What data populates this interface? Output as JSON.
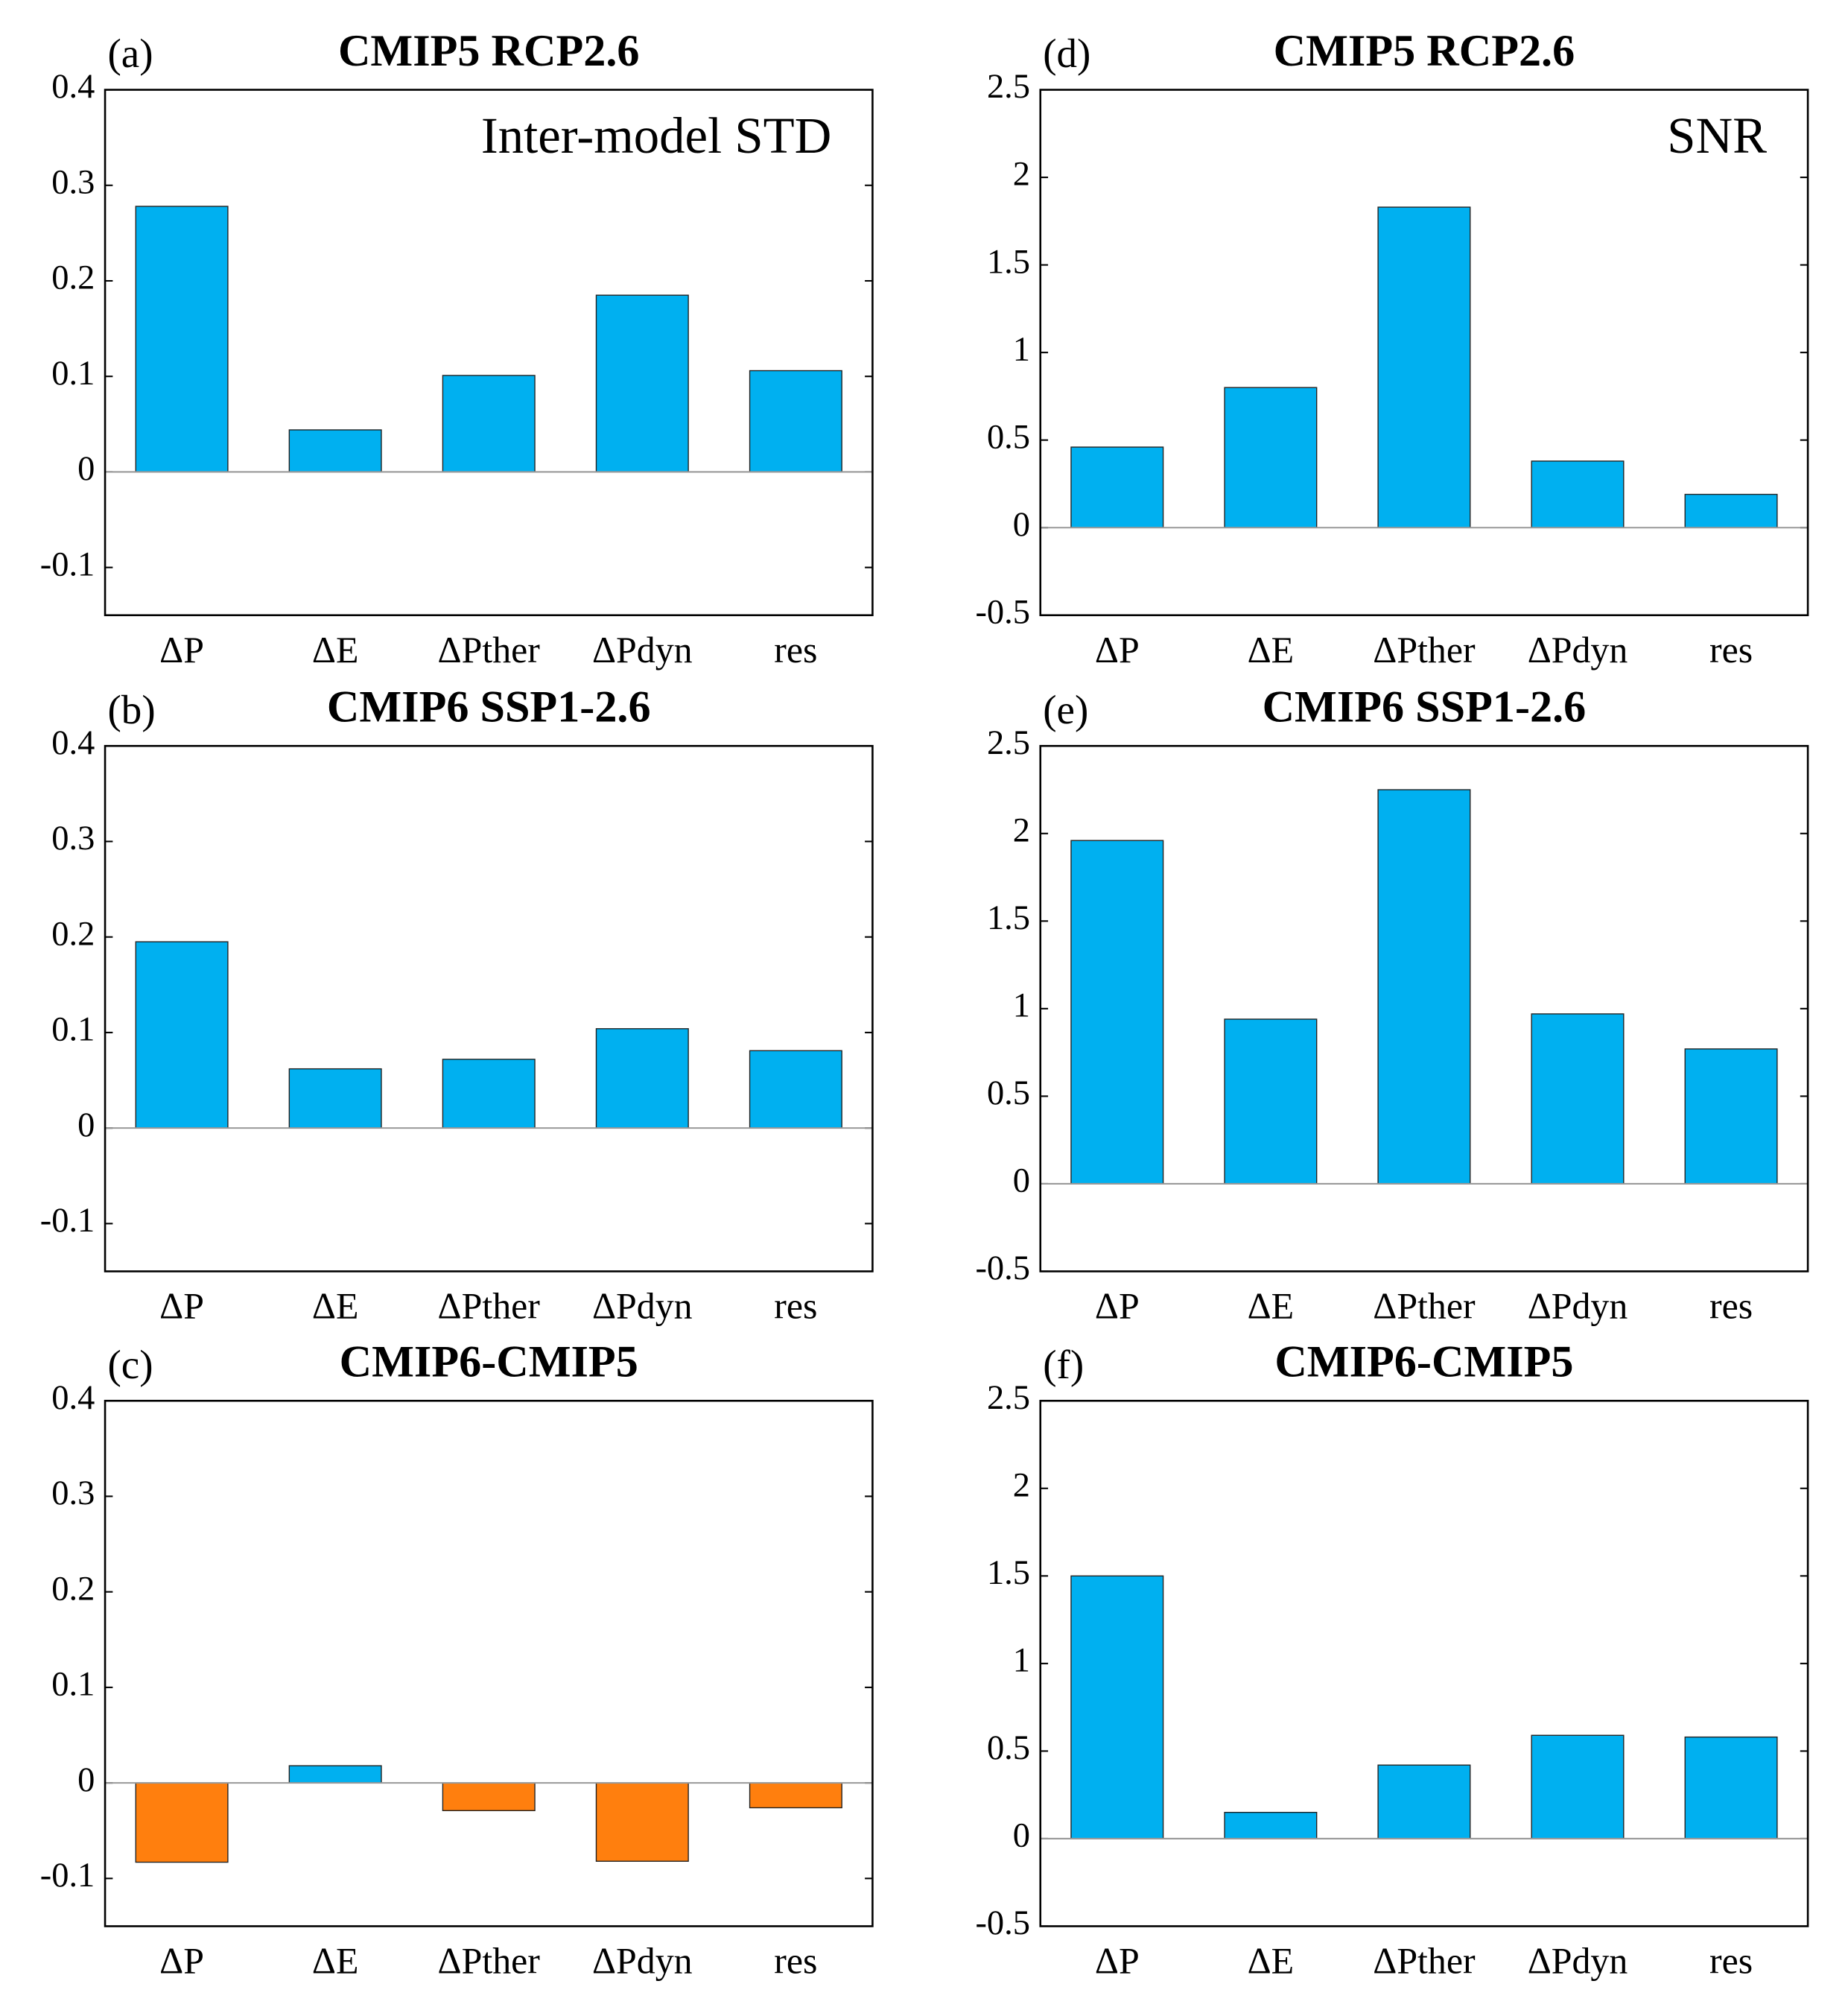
{
  "chart_data": [
    {
      "type": "bar",
      "panel_label": "(a)",
      "title": "CMIP5 RCP2.6",
      "annotation": "Inter-model STD",
      "categories": [
        "ΔP",
        "ΔE",
        "ΔPther",
        "ΔPdyn",
        "res"
      ],
      "values": [
        0.278,
        0.044,
        0.101,
        0.185,
        0.106
      ],
      "color": "#00b0f0",
      "ylim": [
        -0.15,
        0.4
      ],
      "yticks": [
        -0.1,
        0,
        0.1,
        0.2,
        0.3,
        0.4
      ]
    },
    {
      "type": "bar",
      "panel_label": "(b)",
      "title": "CMIP6 SSP1-2.6",
      "categories": [
        "ΔP",
        "ΔE",
        "ΔPther",
        "ΔPdyn",
        "res"
      ],
      "values": [
        0.195,
        0.062,
        0.072,
        0.104,
        0.081
      ],
      "color": "#00b0f0",
      "ylim": [
        -0.15,
        0.4
      ],
      "yticks": [
        -0.1,
        0,
        0.1,
        0.2,
        0.3,
        0.4
      ]
    },
    {
      "type": "bar",
      "panel_label": "(c)",
      "title": "CMIP6-CMIP5",
      "categories": [
        "ΔP",
        "ΔE",
        "ΔPther",
        "ΔPdyn",
        "res"
      ],
      "values": [
        -0.083,
        0.018,
        -0.029,
        -0.082,
        -0.026
      ],
      "colors": [
        "#ff7f0e",
        "#00b0f0",
        "#ff7f0e",
        "#ff7f0e",
        "#ff7f0e"
      ],
      "ylim": [
        -0.15,
        0.4
      ],
      "yticks": [
        -0.1,
        0,
        0.1,
        0.2,
        0.3,
        0.4
      ]
    },
    {
      "type": "bar",
      "panel_label": "(d)",
      "title": "CMIP5 RCP2.6",
      "annotation": "SNR",
      "categories": [
        "ΔP",
        "ΔE",
        "ΔPther",
        "ΔPdyn",
        "res"
      ],
      "values": [
        0.46,
        0.8,
        1.83,
        0.38,
        0.19
      ],
      "color": "#00b0f0",
      "ylim": [
        -0.5,
        2.5
      ],
      "yticks": [
        -0.5,
        0,
        0.5,
        1,
        1.5,
        2,
        2.5
      ]
    },
    {
      "type": "bar",
      "panel_label": "(e)",
      "title": "CMIP6 SSP1-2.6",
      "categories": [
        "ΔP",
        "ΔE",
        "ΔPther",
        "ΔPdyn",
        "res"
      ],
      "values": [
        1.96,
        0.94,
        2.25,
        0.97,
        0.77
      ],
      "color": "#00b0f0",
      "ylim": [
        -0.5,
        2.5
      ],
      "yticks": [
        -0.5,
        0,
        0.5,
        1,
        1.5,
        2,
        2.5
      ]
    },
    {
      "type": "bar",
      "panel_label": "(f)",
      "title": "CMIP6-CMIP5",
      "categories": [
        "ΔP",
        "ΔE",
        "ΔPther",
        "ΔPdyn",
        "res"
      ],
      "values": [
        1.5,
        0.15,
        0.42,
        0.59,
        0.58
      ],
      "color": "#00b0f0",
      "ylim": [
        -0.5,
        2.5
      ],
      "yticks": [
        -0.5,
        0,
        0.5,
        1,
        1.5,
        2,
        2.5
      ]
    }
  ]
}
